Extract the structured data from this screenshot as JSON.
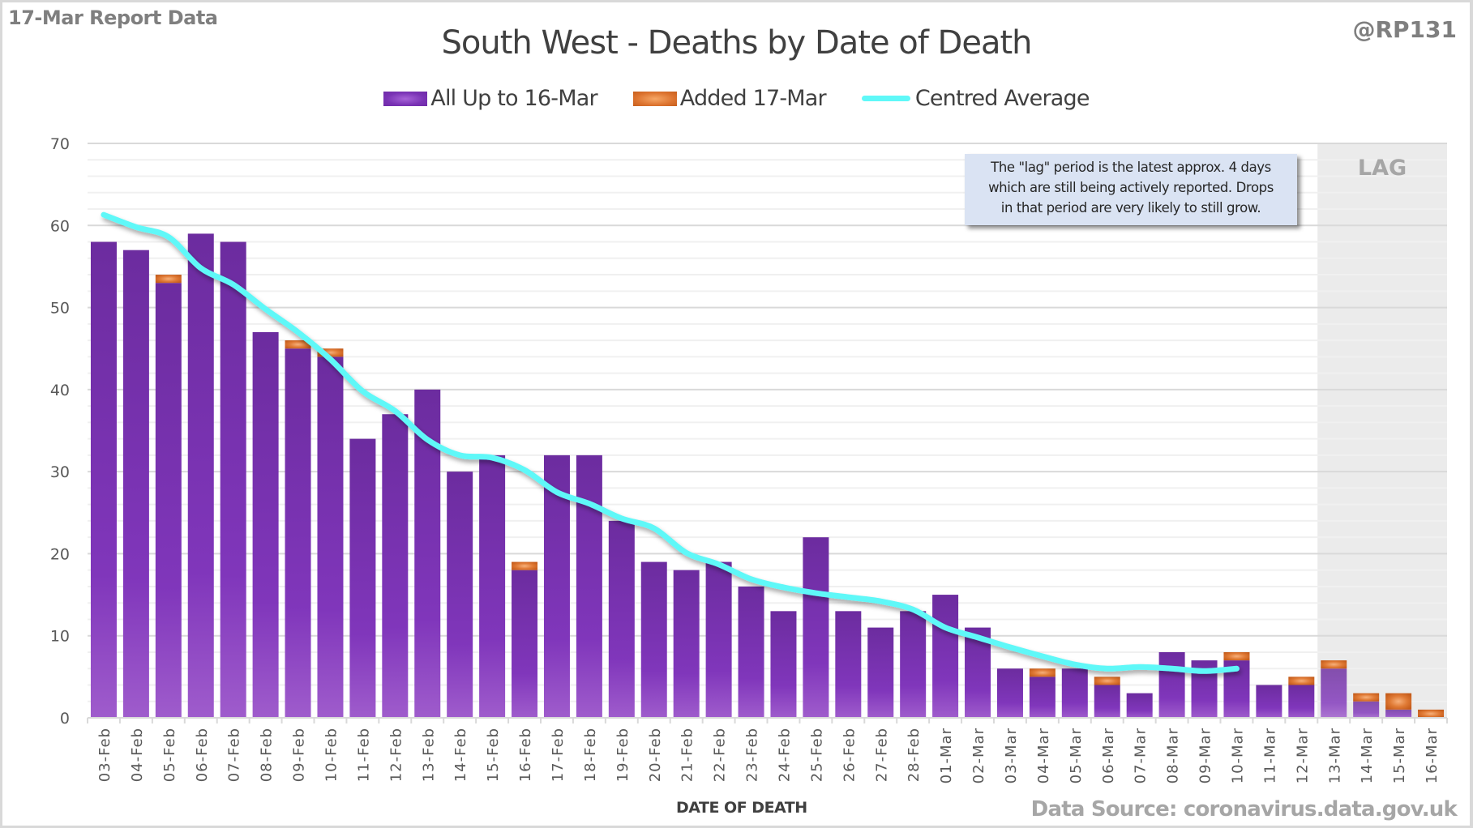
{
  "header": {
    "report_label": "17-Mar Report Data",
    "handle": "@RP131",
    "data_source": "Data Source: coronavirus.data.gov.uk"
  },
  "annotation": {
    "lines": [
      "The \"lag\" period is the latest approx. 4 days",
      "which are still being actively reported.  Drops",
      "in that period are very likely to still grow."
    ],
    "lag_label": "LAG"
  },
  "colors": {
    "all_up_to": "#7a33b5",
    "added": "#dd7430",
    "average": "#5ff8f8",
    "lag_background": "#ebebeb",
    "note_background": "#dae3f3"
  },
  "chart_data": {
    "type": "bar",
    "stacked": true,
    "title": "South West - Deaths by Date of Death",
    "xlabel": "DATE OF DEATH",
    "ylabel": "",
    "ylim": [
      0,
      70
    ],
    "yticks": [
      0,
      10,
      20,
      30,
      40,
      50,
      60,
      70
    ],
    "grid": true,
    "minor_grid_step": 2,
    "legend_position": "top-center",
    "lag_categories": [
      "13-Mar",
      "14-Mar",
      "15-Mar",
      "16-Mar"
    ],
    "categories": [
      "03-Feb",
      "04-Feb",
      "05-Feb",
      "06-Feb",
      "07-Feb",
      "08-Feb",
      "09-Feb",
      "10-Feb",
      "11-Feb",
      "12-Feb",
      "13-Feb",
      "14-Feb",
      "15-Feb",
      "16-Feb",
      "17-Feb",
      "18-Feb",
      "19-Feb",
      "20-Feb",
      "21-Feb",
      "22-Feb",
      "23-Feb",
      "24-Feb",
      "25-Feb",
      "26-Feb",
      "27-Feb",
      "28-Feb",
      "01-Mar",
      "02-Mar",
      "03-Mar",
      "04-Mar",
      "05-Mar",
      "06-Mar",
      "07-Mar",
      "08-Mar",
      "09-Mar",
      "10-Mar",
      "11-Mar",
      "12-Mar",
      "13-Mar",
      "14-Mar",
      "15-Mar",
      "16-Mar"
    ],
    "series": [
      {
        "name": "All Up to 16-Mar",
        "type": "bar",
        "values": [
          58,
          57,
          53,
          59,
          58,
          47,
          45,
          44,
          34,
          37,
          40,
          30,
          32,
          18,
          32,
          32,
          24,
          19,
          18,
          19,
          16,
          13,
          22,
          13,
          11,
          13,
          15,
          11,
          6,
          5,
          6,
          4,
          3,
          8,
          7,
          7,
          4,
          4,
          6,
          2,
          1,
          0
        ]
      },
      {
        "name": "Added 17-Mar",
        "type": "bar",
        "values": [
          0,
          0,
          1,
          0,
          0,
          0,
          1,
          1,
          0,
          0,
          0,
          0,
          0,
          1,
          0,
          0,
          0,
          0,
          0,
          0,
          0,
          0,
          0,
          0,
          0,
          0,
          0,
          0,
          0,
          1,
          0,
          1,
          0,
          0,
          0,
          1,
          0,
          1,
          1,
          1,
          2,
          1
        ]
      },
      {
        "name": "Centred Average",
        "type": "line",
        "values": [
          61.3,
          59.8,
          58.6,
          54.8,
          52.8,
          49.8,
          47.0,
          43.7,
          39.8,
          37.4,
          33.9,
          32.0,
          31.7,
          30.2,
          27.5,
          26.1,
          24.3,
          23.1,
          20.1,
          18.7,
          16.9,
          15.9,
          15.2,
          14.7,
          14.2,
          13.2,
          11.0,
          9.8,
          8.6,
          7.5,
          6.5,
          6.0,
          6.2,
          6.0,
          5.7,
          6.0,
          null,
          null,
          null,
          null,
          null,
          null
        ]
      }
    ]
  }
}
